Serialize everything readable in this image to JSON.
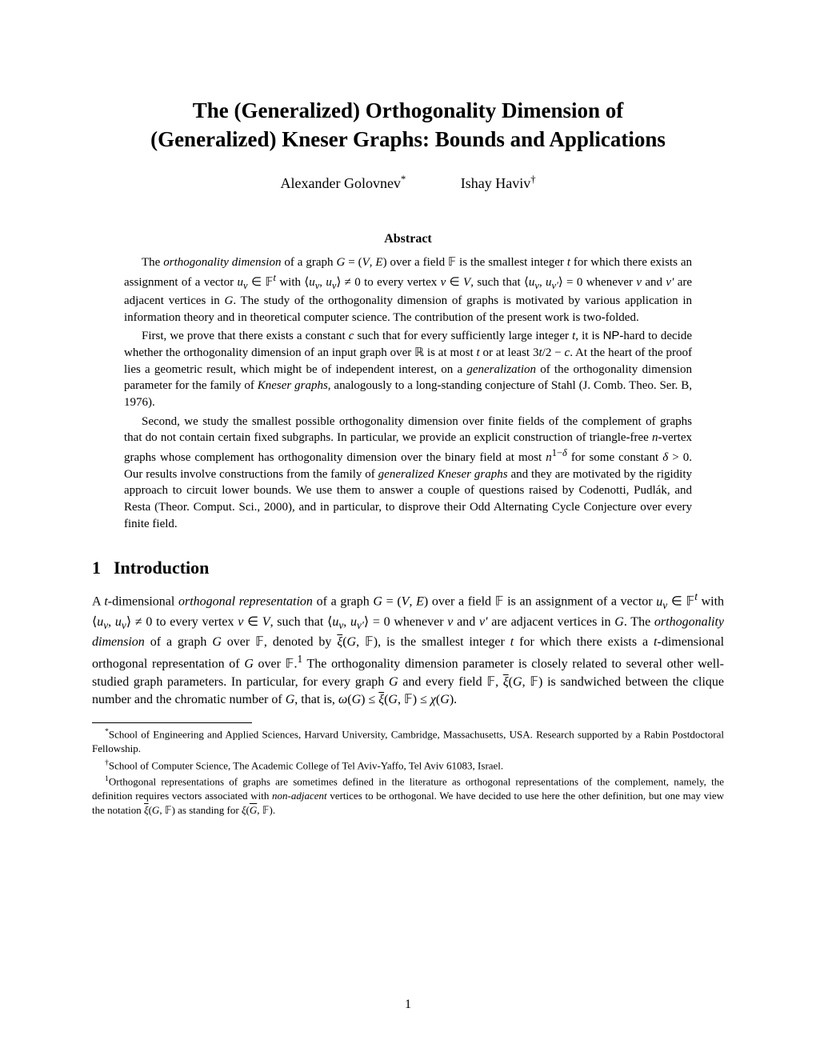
{
  "title_line1": "The (Generalized) Orthogonality Dimension of",
  "title_line2": "(Generalized) Kneser Graphs: Bounds and Applications",
  "authors": [
    {
      "name": "Alexander Golovnev",
      "mark": "*"
    },
    {
      "name": "Ishay Haviv",
      "mark": "†"
    }
  ],
  "abstract_heading": "Abstract",
  "abstract_paragraphs": [
    "The <i>orthogonality dimension</i> of a graph <span class='math-it'>G</span> = (<span class='math-it'>V</span>, <span class='math-it'>E</span>) over a field <span class='bb'>𝔽</span> is the smallest integer <span class='math-it'>t</span> for which there exists an assignment of a vector <span class='math-it'>u<sub>v</sub></span> ∈ <span class='bb'>𝔽</span><sup><span class='math-it'>t</span></sup> with ⟨<span class='math-it'>u<sub>v</sub></span>, <span class='math-it'>u<sub>v</sub></span>⟩ ≠ 0 to every vertex <span class='math-it'>v</span> ∈ <span class='math-it'>V</span>, such that ⟨<span class='math-it'>u<sub>v</sub></span>, <span class='math-it'>u<sub>v′</sub></span>⟩ = 0 whenever <span class='math-it'>v</span> and <span class='math-it'>v′</span> are adjacent vertices in <span class='math-it'>G</span>. The study of the orthogonality dimension of graphs is motivated by various application in information theory and in theoretical computer science. The contribution of the present work is two-folded.",
    "First, we prove that there exists a constant <span class='math-it'>c</span> such that for every sufficiently large integer <span class='math-it'>t</span>, it is <span class='sf'>NP</span>-hard to decide whether the orthogonality dimension of an input graph over <span class='bb'>ℝ</span> is at most <span class='math-it'>t</span> or at least 3<span class='math-it'>t</span>/2 − <span class='math-it'>c</span>. At the heart of the proof lies a geometric result, which might be of independent interest, on a <i>generalization</i> of the orthogonality dimension parameter for the family of <i>Kneser graphs</i>, analogously to a long-standing conjecture of Stahl (J. Comb. Theo. Ser. B, 1976).",
    "Second, we study the smallest possible orthogonality dimension over finite fields of the complement of graphs that do not contain certain fixed subgraphs. In particular, we provide an explicit construction of triangle-free <span class='math-it'>n</span>-vertex graphs whose complement has orthogonality dimension over the binary field at most <span class='math-it'>n</span><sup>1−<span class='math-it'>δ</span></sup> for some constant <span class='math-it'>δ</span> &gt; 0. Our results involve constructions from the family of <i>generalized Kneser graphs</i> and they are motivated by the rigidity approach to circuit lower bounds. We use them to answer a couple of questions raised by Codenotti, Pudlák, and Resta (Theor. Comput. Sci., 2000), and in particular, to disprove their Odd Alternating Cycle Conjecture over every finite field."
  ],
  "section_number": "1",
  "section_title": "Introduction",
  "intro_html": "A <span class='math-it'>t</span>-dimensional <i>orthogonal representation</i> of a graph <span class='math-it'>G</span> = (<span class='math-it'>V</span>, <span class='math-it'>E</span>) over a field <span class='bb'>𝔽</span> is an assignment of a vector <span class='math-it'>u<sub>v</sub></span> ∈ <span class='bb'>𝔽</span><sup><span class='math-it'>t</span></sup> with ⟨<span class='math-it'>u<sub>v</sub></span>, <span class='math-it'>u<sub>v</sub></span>⟩ ≠ 0 to every vertex <span class='math-it'>v</span> ∈ <span class='math-it'>V</span>, such that ⟨<span class='math-it'>u<sub>v</sub></span>, <span class='math-it'>u<sub>v′</sub></span>⟩ = 0 whenever <span class='math-it'>v</span> and <span class='math-it'>v′</span> are adjacent vertices in <span class='math-it'>G</span>. The <i>orthogonality dimension</i> of a graph <span class='math-it'>G</span> over <span class='bb'>𝔽</span>, denoted by <span class='ovl'><span class='math-it'>ξ</span></span>(<span class='math-it'>G</span>, <span class='bb'>𝔽</span>), is the smallest integer <span class='math-it'>t</span> for which there exists a <span class='math-it'>t</span>-dimensional orthogonal representation of <span class='math-it'>G</span> over <span class='bb'>𝔽</span>.<sup>1</sup> The orthogonality dimension parameter is closely related to several other well-studied graph parameters. In particular, for every graph <span class='math-it'>G</span> and every field <span class='bb'>𝔽</span>, <span class='ovl'><span class='math-it'>ξ</span></span>(<span class='math-it'>G</span>, <span class='bb'>𝔽</span>) is sandwiched between the clique number and the chromatic number of <span class='math-it'>G</span>, that is, <span class='math-it'>ω</span>(<span class='math-it'>G</span>) ≤ <span class='ovl'><span class='math-it'>ξ</span></span>(<span class='math-it'>G</span>, <span class='bb'>𝔽</span>) ≤ <span class='math-it'>χ</span>(<span class='math-it'>G</span>).",
  "footnotes": [
    {
      "mark": "*",
      "text": "School of Engineering and Applied Sciences, Harvard University, Cambridge, Massachusetts, USA. Research supported by a Rabin Postdoctoral Fellowship."
    },
    {
      "mark": "†",
      "text": "School of Computer Science, The Academic College of Tel Aviv-Yaffo, Tel Aviv 61083, Israel."
    },
    {
      "mark": "1",
      "text": "Orthogonal representations of graphs are sometimes defined in the literature as orthogonal representations of the complement, namely, the definition requires vectors associated with <i>non-adjacent</i> vertices to be orthogonal. We have decided to use here the other definition, but one may view the notation <span class='ovl'><span class='math-it'>ξ</span></span>(<span class='math-it'>G</span>, <span class='bb'>𝔽</span>) as standing for <span class='math-it'>ξ</span>(<span class='ovl'><span class='math-it'>G</span></span>, <span class='bb'>𝔽</span>)."
    }
  ],
  "page_number": "1"
}
